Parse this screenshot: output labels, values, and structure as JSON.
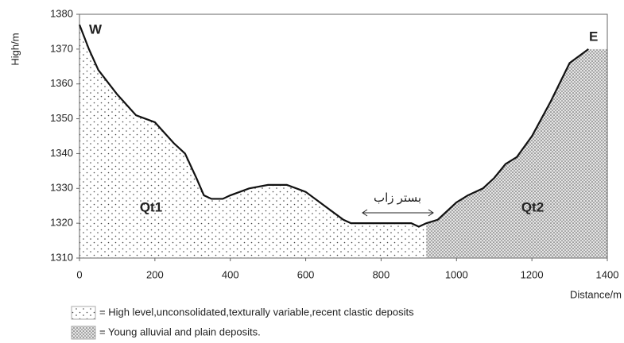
{
  "chart_data": {
    "type": "line",
    "x": [
      0,
      25,
      50,
      100,
      150,
      200,
      250,
      280,
      310,
      330,
      350,
      380,
      400,
      450,
      500,
      550,
      600,
      650,
      700,
      720,
      800,
      880,
      900,
      920,
      950,
      1000,
      1030,
      1070,
      1100,
      1130,
      1160,
      1200,
      1250,
      1300,
      1350
    ],
    "values": [
      1377,
      1370,
      1364,
      1357,
      1351,
      1349,
      1343,
      1340,
      1333,
      1328,
      1327,
      1327,
      1328,
      1330,
      1331,
      1331,
      1329,
      1325,
      1321,
      1320,
      1320,
      1320,
      1319,
      1320,
      1321,
      1326,
      1328,
      1330,
      1333,
      1337,
      1339,
      1345,
      1355,
      1366,
      1370
    ],
    "color": "#111111",
    "xlim": [
      0,
      1400
    ],
    "xticks": [
      0,
      200,
      400,
      600,
      800,
      1000,
      1200,
      1400
    ],
    "ylim": [
      1310,
      1380
    ],
    "yticks": [
      1310,
      1320,
      1330,
      1340,
      1350,
      1360,
      1370,
      1380
    ],
    "xlabel": "Distance/m",
    "ylabel": "High/m",
    "west": "W",
    "east": "E",
    "river": "بستر زاب",
    "deposits": [
      {
        "symbol": "Qt1",
        "label": "= High level,unconsolidated,texturally variable,recent clastic deposits",
        "from": 0,
        "to": 920
      },
      {
        "symbol": "Qt2",
        "label": "= Young alluvial and plain deposits.",
        "from": 920,
        "to": 1400
      }
    ]
  }
}
